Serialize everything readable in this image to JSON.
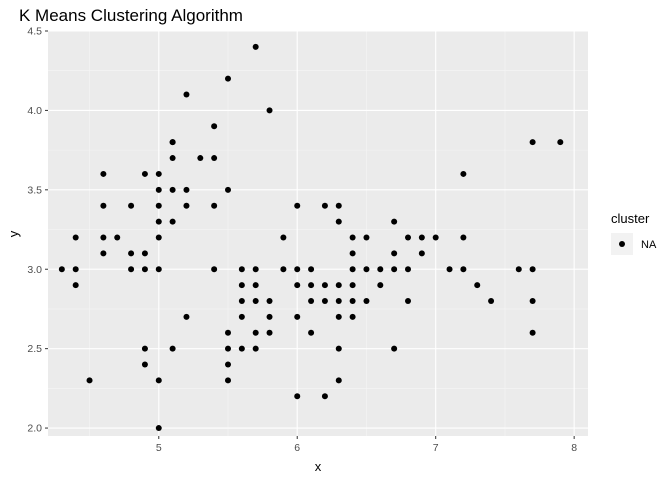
{
  "chart_data": {
    "type": "scatter",
    "title": "K Means Clustering Algorithm",
    "xlabel": "x",
    "ylabel": "y",
    "xlim": [
      4.2,
      8.1
    ],
    "ylim": [
      1.95,
      4.5
    ],
    "x_ticks": [
      5,
      6,
      7,
      8
    ],
    "y_ticks": [
      2.0,
      2.5,
      3.0,
      3.5,
      4.0,
      4.5
    ],
    "x_tick_labels": [
      "5",
      "6",
      "7",
      "8"
    ],
    "y_tick_labels": [
      "2.0",
      "2.5",
      "3.0",
      "3.5",
      "4.0",
      "4.5"
    ],
    "grid": true,
    "point_color": "#000000",
    "panel_background": "#ebebeb",
    "legend": {
      "title": "cluster",
      "entries": [
        "NA"
      ],
      "placement": "right"
    },
    "series": [
      {
        "x": [
          4.3,
          4.4,
          4.4,
          4.4,
          4.5,
          4.6,
          4.6,
          4.6,
          4.6,
          4.7,
          4.8,
          4.8,
          4.8,
          4.9,
          4.9,
          4.9,
          4.9,
          4.9,
          5.0,
          5.0,
          5.0,
          5.0,
          5.0,
          5.0,
          5.0,
          5.0,
          5.1,
          5.1,
          5.1,
          5.1,
          5.1,
          5.1,
          5.2,
          5.2,
          5.2,
          5.2,
          5.3,
          5.4,
          5.4,
          5.4,
          5.4,
          5.5,
          5.5,
          5.5,
          5.5,
          5.5,
          5.5,
          5.6,
          5.6,
          5.6,
          5.6,
          5.6,
          5.7,
          5.7,
          5.7,
          5.7,
          5.7,
          5.7,
          5.8,
          5.8,
          5.8,
          5.8,
          5.9,
          5.9,
          6.0,
          6.0,
          6.0,
          6.0,
          6.0,
          6.1,
          6.1,
          6.1,
          6.1,
          6.2,
          6.2,
          6.2,
          6.2,
          6.3,
          6.3,
          6.3,
          6.3,
          6.3,
          6.3,
          6.3,
          6.4,
          6.4,
          6.4,
          6.4,
          6.4,
          6.4,
          6.5,
          6.5,
          6.5,
          6.6,
          6.6,
          6.7,
          6.7,
          6.7,
          6.7,
          6.8,
          6.8,
          6.8,
          6.9,
          6.9,
          7.0,
          7.1,
          7.2,
          7.2,
          7.2,
          7.3,
          7.4,
          7.6,
          7.7,
          7.7,
          7.7,
          7.7,
          7.9
        ],
        "y": [
          3.0,
          2.9,
          3.0,
          3.2,
          2.3,
          3.1,
          3.2,
          3.4,
          3.6,
          3.2,
          3.0,
          3.1,
          3.4,
          2.4,
          2.5,
          3.0,
          3.1,
          3.6,
          2.0,
          2.3,
          3.0,
          3.2,
          3.3,
          3.4,
          3.5,
          3.6,
          2.5,
          3.3,
          3.5,
          3.7,
          3.8,
          3.8,
          2.7,
          3.4,
          3.5,
          4.1,
          3.7,
          3.0,
          3.4,
          3.7,
          3.9,
          2.3,
          2.4,
          2.5,
          2.6,
          3.5,
          4.2,
          2.5,
          2.7,
          2.8,
          2.9,
          3.0,
          2.5,
          2.6,
          2.8,
          2.9,
          3.0,
          4.4,
          2.6,
          2.7,
          2.8,
          4.0,
          3.0,
          3.2,
          2.2,
          2.7,
          2.9,
          3.0,
          3.4,
          2.6,
          2.8,
          2.9,
          3.0,
          2.2,
          2.8,
          2.9,
          3.4,
          2.3,
          2.5,
          2.7,
          2.8,
          2.9,
          3.3,
          3.4,
          2.7,
          2.8,
          2.9,
          3.1,
          3.2,
          3.0,
          2.8,
          3.0,
          3.2,
          2.9,
          3.0,
          2.5,
          3.0,
          3.1,
          3.3,
          2.8,
          3.0,
          3.2,
          3.1,
          3.2,
          3.2,
          3.0,
          3.0,
          3.2,
          3.6,
          2.9,
          2.8,
          3.0,
          2.6,
          2.8,
          3.0,
          3.8,
          3.8
        ]
      }
    ]
  }
}
